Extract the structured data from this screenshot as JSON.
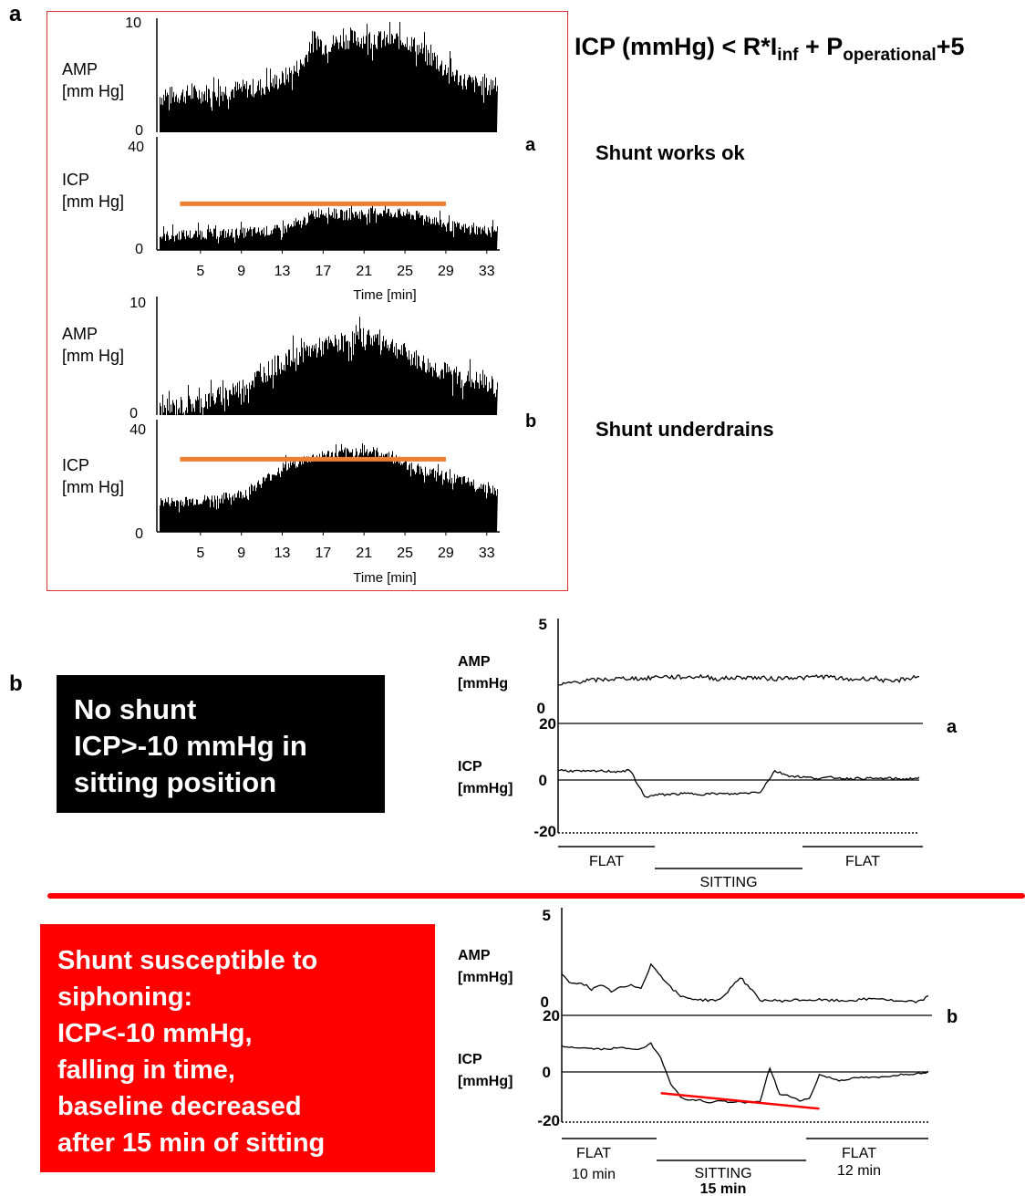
{
  "figure": {
    "panel_a_letter": "a",
    "panel_b_letter": "b",
    "formula": {
      "main": "ICP (mmHg) < R*I",
      "sub1": "inf",
      "mid": " + P",
      "sub2": "operational",
      "end": "+5"
    }
  },
  "panel_a": {
    "sub_a_letter": "a",
    "sub_b_letter": "b",
    "caption_a": "Shunt works ok",
    "caption_b": "Shunt underdrains",
    "amp_label": [
      "AMP",
      "[mm Hg]"
    ],
    "icp_label": [
      "ICP",
      "[mm Hg]"
    ],
    "amp_ticks": [
      "10",
      "0"
    ],
    "icp_ticks": [
      "40",
      "0"
    ],
    "x_ticks": [
      "5",
      "9",
      "13",
      "17",
      "21",
      "25",
      "29",
      "33"
    ],
    "xlabel": "Time [min]"
  },
  "panel_b": {
    "black_box": [
      "No shunt",
      "ICP>-10 mmHg in",
      "sitting position"
    ],
    "red_box": [
      "Shunt susceptible to",
      "siphoning:",
      "ICP<-10 mmHg,",
      "falling in time,",
      "baseline decreased",
      "after 15 min of sitting"
    ],
    "sub_a_letter": "a",
    "sub_b_letter": "b",
    "amp_label": [
      "AMP",
      "[mmHg"
    ],
    "amp_label_b": [
      "AMP",
      "[mmHg]"
    ],
    "icp_label": [
      "ICP",
      "[mmHg]"
    ],
    "amp_ticks": [
      "5",
      "0"
    ],
    "icp_ticks": [
      "20",
      "0",
      "-20"
    ],
    "phases_a": [
      "FLAT",
      "SITTING",
      "FLAT"
    ],
    "phases_b": [
      "FLAT",
      "10 min",
      "SITTING",
      "15 min",
      "FLAT",
      "12 min"
    ]
  },
  "colors": {
    "threshold": "#ed7d31",
    "frame": "#e03030",
    "trend": "#ff0000",
    "red_box": "#ff0000",
    "black_box": "#000000"
  },
  "chart_data": [
    {
      "type": "area",
      "name_hint": "Panel a (a) AMP",
      "x_unit": "min",
      "ylim": [
        0,
        10
      ],
      "x": [
        1,
        3,
        5,
        7,
        9,
        11,
        13,
        15,
        16,
        17,
        19,
        21,
        23,
        25,
        27,
        29,
        31,
        33,
        34
      ],
      "values": [
        3.2,
        3.4,
        3.5,
        3.7,
        3.9,
        4.1,
        4.8,
        6.2,
        8.6,
        7.8,
        8.4,
        8.5,
        8.3,
        8.4,
        7.1,
        5.7,
        4.5,
        4.1,
        4.6
      ],
      "grid": false
    },
    {
      "type": "area",
      "name_hint": "Panel a (a) ICP",
      "x_unit": "min",
      "ylim": [
        0,
        40
      ],
      "threshold": 17,
      "x": [
        1,
        3,
        5,
        7,
        9,
        11,
        13,
        15,
        16,
        17,
        19,
        21,
        23,
        25,
        27,
        29,
        31,
        33,
        34
      ],
      "values": [
        5,
        5.5,
        5.8,
        6,
        6.3,
        6.8,
        7.5,
        10,
        13.5,
        14,
        12.8,
        13.5,
        14,
        13.2,
        12,
        9.2,
        7.8,
        7.2,
        7.5
      ],
      "grid": false
    },
    {
      "type": "area",
      "name_hint": "Panel a (b) AMP",
      "x_unit": "min",
      "ylim": [
        0,
        10
      ],
      "x": [
        1,
        3,
        5,
        7,
        9,
        11,
        13,
        15,
        17,
        19,
        21,
        23,
        25,
        27,
        29,
        31,
        33,
        34
      ],
      "values": [
        0.4,
        0.8,
        1.1,
        1.7,
        2.4,
        3.6,
        4.6,
        5.5,
        6,
        6.4,
        6.9,
        6.5,
        5.4,
        4.4,
        3.7,
        3.2,
        2.7,
        2.4
      ],
      "grid": false
    },
    {
      "type": "area",
      "name_hint": "Panel a (b) ICP",
      "x_unit": "min",
      "ylim": [
        0,
        40
      ],
      "threshold": 27,
      "x": [
        1,
        3,
        5,
        7,
        9,
        11,
        13,
        15,
        17,
        19,
        21,
        23,
        25,
        27,
        29,
        31,
        33,
        34
      ],
      "values": [
        11,
        11.2,
        11.7,
        12.4,
        14,
        18.5,
        24,
        26.5,
        28.5,
        29,
        30.2,
        28.8,
        25.2,
        22.5,
        20.4,
        18.5,
        16.4,
        14.5
      ],
      "grid": false
    },
    {
      "type": "line",
      "name_hint": "Panel b (a) AMP",
      "x_unit": "min",
      "ylim": [
        0,
        5
      ],
      "x": [
        0,
        2,
        4,
        6,
        8,
        10,
        12,
        14,
        16,
        18,
        20,
        22,
        24,
        26,
        28,
        30,
        32,
        34,
        36,
        38,
        40,
        42,
        44,
        46,
        48,
        50
      ],
      "values": [
        1.4,
        1.6,
        1.7,
        1.75,
        1.8,
        1.85,
        1.8,
        1.95,
        1.9,
        1.9,
        1.95,
        1.8,
        1.85,
        1.9,
        1.85,
        1.8,
        1.9,
        1.85,
        1.95,
        1.9,
        1.75,
        1.8,
        1.85,
        1.6,
        1.8,
        1.95
      ]
    },
    {
      "type": "line",
      "name_hint": "Panel b (a) ICP",
      "x_unit": "min",
      "ylim": [
        -20,
        20
      ],
      "x": [
        0,
        2,
        4,
        6,
        8,
        10,
        12,
        14,
        16,
        18,
        20,
        22,
        24,
        26,
        28,
        30,
        32,
        34,
        36,
        38,
        40,
        42,
        44,
        46,
        48,
        50
      ],
      "values": [
        3.5,
        3.2,
        3.0,
        3.2,
        3.0,
        3.3,
        -6.0,
        -5.2,
        -5.0,
        -4.8,
        -5.0,
        -4.8,
        -5.0,
        -4.6,
        -4.2,
        3.2,
        1.5,
        1.0,
        0.6,
        0.9,
        0.5,
        0.6,
        0.5,
        0.6,
        0.3,
        0.8
      ],
      "phases": [
        {
          "label": "FLAT",
          "x": [
            0,
            10
          ]
        },
        {
          "label": "SITTING",
          "x": [
            10,
            25
          ]
        },
        {
          "label": "FLAT",
          "x": [
            25,
            37
          ]
        }
      ]
    },
    {
      "type": "line",
      "name_hint": "Panel b (b) AMP",
      "x_unit": "min",
      "ylim": [
        0,
        5
      ],
      "x": [
        0,
        1,
        2,
        3,
        4,
        5,
        6,
        7,
        8,
        9,
        10,
        11,
        12,
        13,
        14,
        16,
        18,
        20,
        22,
        24,
        26,
        28,
        30,
        32,
        34,
        36,
        37
      ],
      "values": [
        1.6,
        1.1,
        1.2,
        0.8,
        1.0,
        0.7,
        0.9,
        1.0,
        0.9,
        2.2,
        1.6,
        0.9,
        0.4,
        0.3,
        0.2,
        0.2,
        1.5,
        0.2,
        0.15,
        0.2,
        0.2,
        0.15,
        0.2,
        0.3,
        0.1,
        0.1,
        0.4
      ]
    },
    {
      "type": "line",
      "name_hint": "Panel b (b) ICP",
      "x_unit": "min",
      "ylim": [
        -20,
        20
      ],
      "x": [
        0,
        2,
        4,
        6,
        8,
        9,
        10,
        11,
        12,
        13,
        14,
        15,
        16,
        17,
        18,
        19,
        20,
        21,
        22,
        23,
        24,
        25,
        26,
        28,
        30,
        32,
        34,
        36,
        37
      ],
      "values": [
        9,
        8.5,
        8,
        8.5,
        8,
        10,
        5,
        -4,
        -9,
        -10,
        -10,
        -11,
        -10,
        -11,
        -10.5,
        -11,
        -10.5,
        1.5,
        -8,
        -8.5,
        -10,
        -9.5,
        -1,
        -3,
        -2,
        -2,
        -1,
        -0.5,
        0
      ],
      "trend": {
        "x": [
          10,
          26
        ],
        "y": [
          -7.5,
          -13
        ]
      },
      "phases": [
        {
          "label": "FLAT",
          "x": [
            0,
            10
          ]
        },
        {
          "label": "SITTING",
          "x": [
            10,
            25
          ]
        },
        {
          "label": "FLAT",
          "x": [
            25,
            37
          ]
        }
      ]
    }
  ]
}
